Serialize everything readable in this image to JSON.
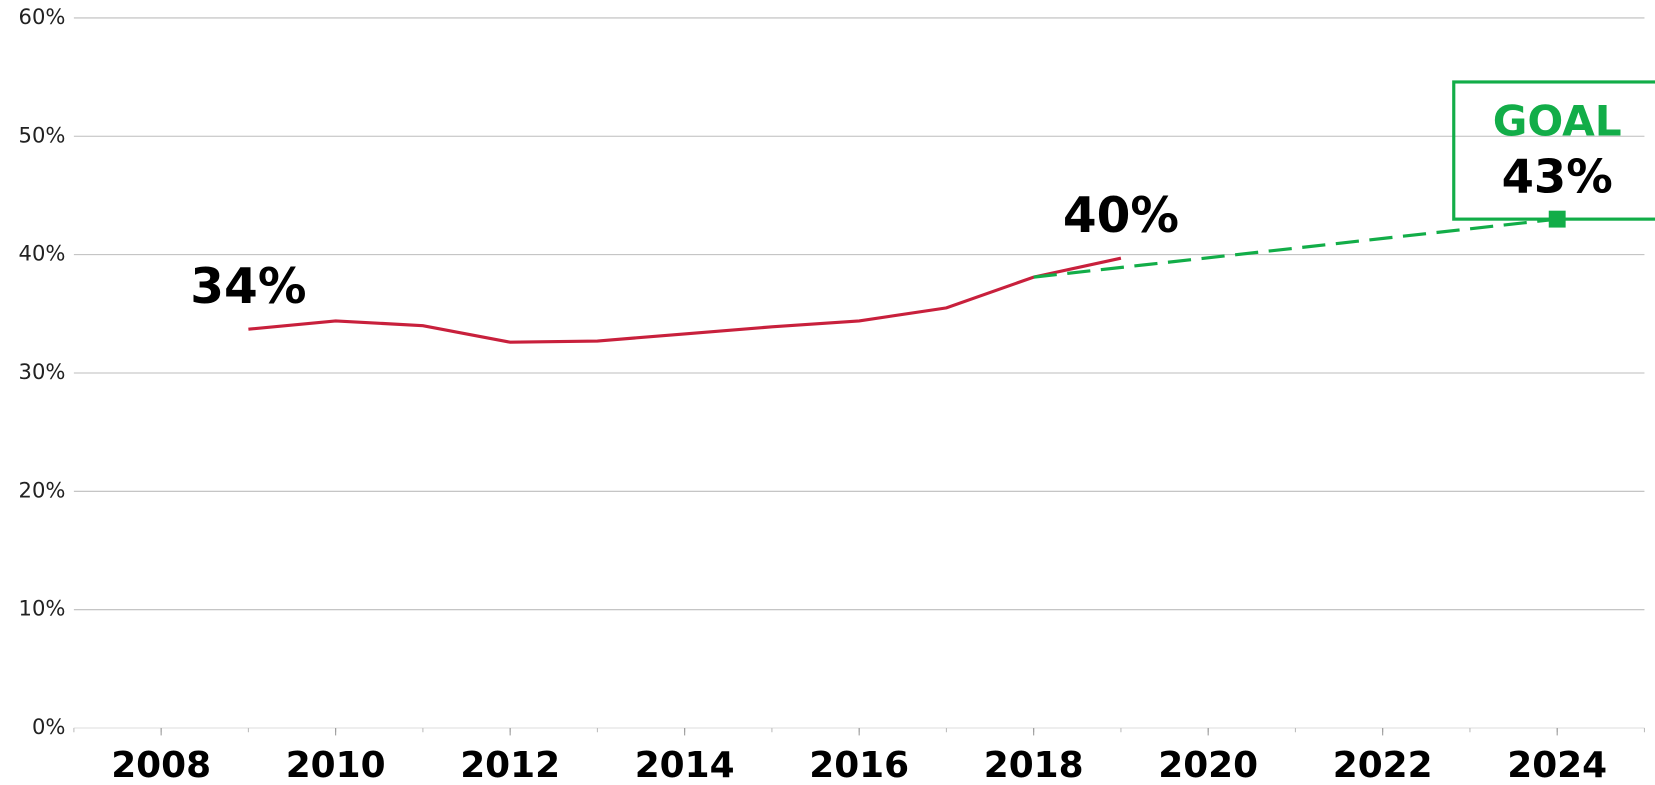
{
  "chart_data": {
    "type": "line",
    "xlim": [
      2007,
      2025
    ],
    "xticks": [
      2008,
      2010,
      2012,
      2014,
      2016,
      2018,
      2020,
      2022,
      2024
    ],
    "ylim": [
      0,
      60
    ],
    "yticks": [
      {
        "value": 0,
        "label": "0%"
      },
      {
        "value": 10,
        "label": "10%"
      },
      {
        "value": 20,
        "label": "20%"
      },
      {
        "value": 30,
        "label": "30%"
      },
      {
        "value": 40,
        "label": "40%"
      },
      {
        "value": 50,
        "label": "50%"
      },
      {
        "value": 60,
        "label": "60%"
      }
    ],
    "grid": true,
    "series": [
      {
        "color": "#c8203c",
        "dashed": false,
        "x": [
          2009,
          2010,
          2011,
          2012,
          2013,
          2014,
          2015,
          2016,
          2017,
          2018,
          2019
        ],
        "values": [
          33.7,
          34.4,
          34.0,
          32.6,
          32.7,
          33.3,
          33.9,
          34.4,
          35.5,
          38.1,
          39.7
        ],
        "value_labels": [
          "34%",
          null,
          null,
          null,
          null,
          null,
          null,
          null,
          null,
          null,
          "40%"
        ]
      },
      {
        "color": "#12ad48",
        "dashed": true,
        "marker": "square",
        "x": [
          2018,
          2024
        ],
        "values": [
          38.1,
          43
        ],
        "value_labels": [
          null,
          "43%"
        ]
      }
    ],
    "annotation": "GOAL"
  }
}
